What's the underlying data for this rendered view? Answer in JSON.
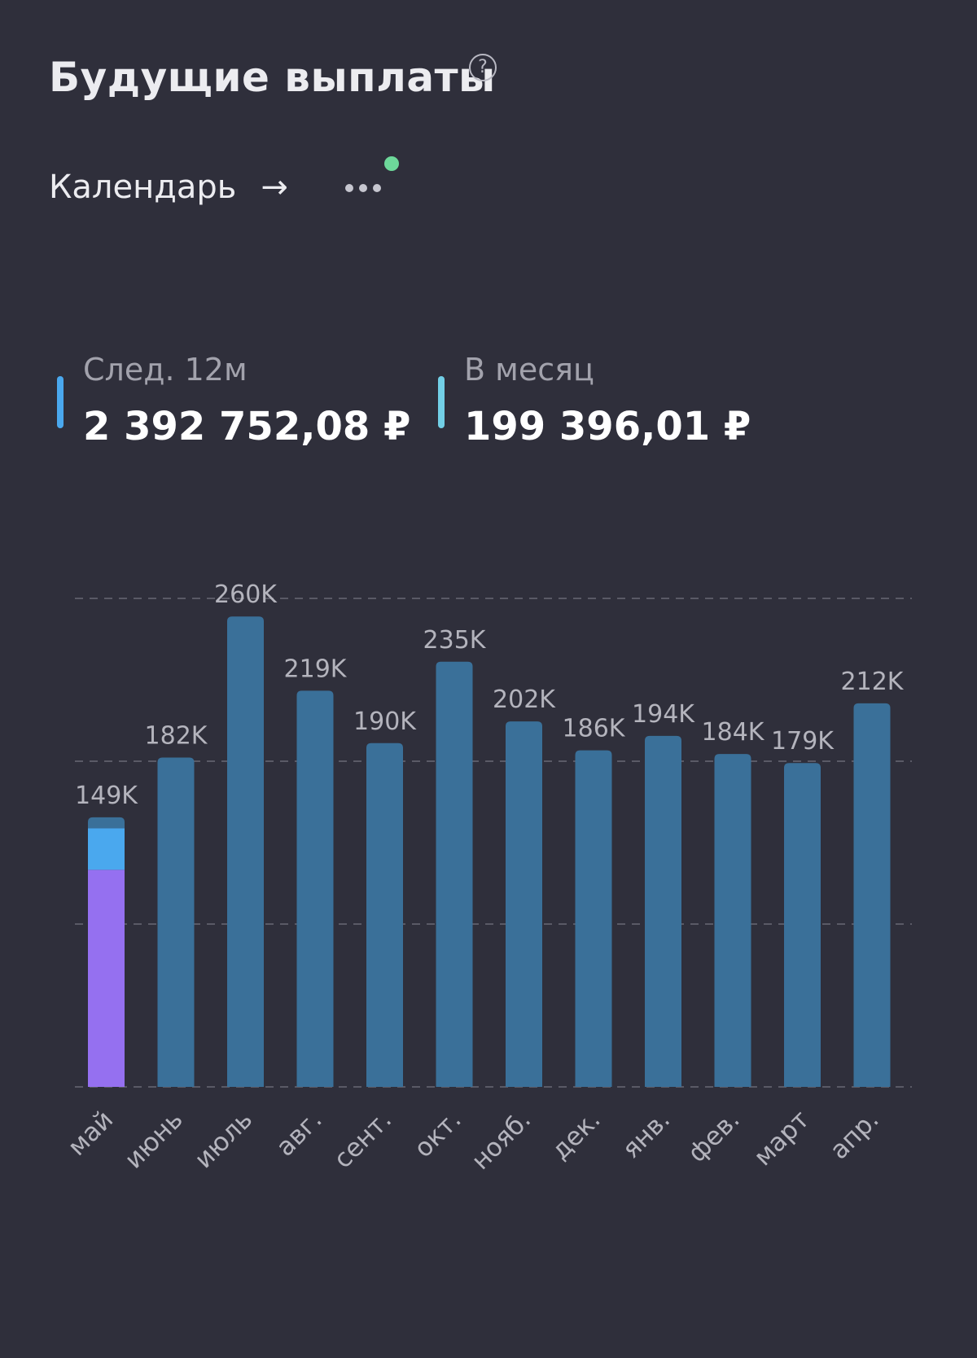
{
  "header": {
    "title": "Будущие выплаты",
    "help_icon": "?",
    "calendar_label": "Календарь",
    "arrow_icon": "→"
  },
  "stats": {
    "next12m": {
      "label": "След. 12м",
      "value": "2 392 752,08 ₽"
    },
    "monthly": {
      "label": "В месяц",
      "value": "199 396,01 ₽"
    }
  },
  "colors": {
    "background": "#2f2f3b",
    "bar": "#3a7099",
    "bar_segment_purple": "#9570f0",
    "bar_segment_blue": "#4aa8ee",
    "marker_12m": "#4aa8ee",
    "marker_month": "#72cfe6",
    "notify_dot": "#6dd89a",
    "label_text": "#b4b4bd",
    "grid": "#5a5a66"
  },
  "chart_data": {
    "type": "bar",
    "categories": [
      "май",
      "июнь",
      "июль",
      "авг.",
      "сент.",
      "окт.",
      "нояб.",
      "дек.",
      "янв.",
      "фев.",
      "март",
      "апр."
    ],
    "values": [
      149000,
      182000,
      260000,
      219000,
      190000,
      235000,
      202000,
      186000,
      194000,
      184000,
      179000,
      212000
    ],
    "value_labels": [
      "149K",
      "182K",
      "260K",
      "219K",
      "190K",
      "235K",
      "202K",
      "186K",
      "194K",
      "184K",
      "179K",
      "212K"
    ],
    "first_bar_segments": [
      {
        "color": "purple",
        "value": 120000
      },
      {
        "color": "blue",
        "value": 23000
      },
      {
        "color": "steel",
        "value": 6000
      }
    ],
    "ylim": [
      0,
      270000
    ],
    "gridlines": [
      0,
      90000,
      180000,
      270000
    ],
    "grid": true,
    "title": "",
    "xlabel": "",
    "ylabel": ""
  }
}
